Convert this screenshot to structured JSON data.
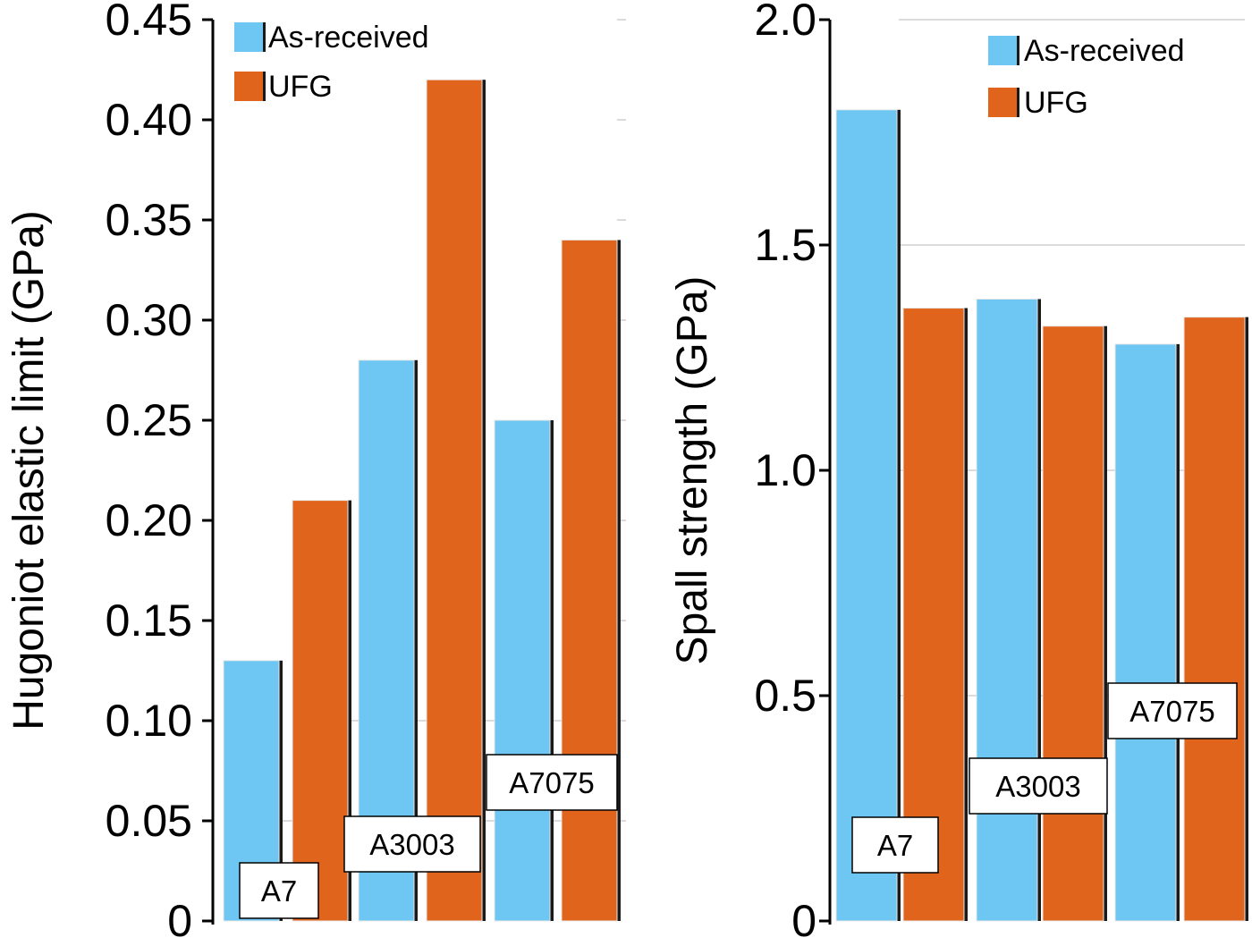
{
  "chart_data": [
    {
      "type": "bar",
      "categories": [
        "A7",
        "A3003",
        "A7075"
      ],
      "series": [
        {
          "name": "As-received",
          "values": [
            0.13,
            0.28,
            0.25
          ]
        },
        {
          "name": "UFG",
          "values": [
            0.21,
            0.42,
            0.34
          ]
        }
      ],
      "ylabel": "Hugoniot elastic limit (GPa)",
      "xlabel": "",
      "ylim": [
        0,
        0.45
      ],
      "yticks": [
        "0",
        "0.05",
        "0.10",
        "0.15",
        "0.20",
        "0.25",
        "0.30",
        "0.35",
        "0.40",
        "0.45"
      ],
      "colors": {
        "As-received": "#6ec6f2",
        "UFG": "#e0641c"
      },
      "grid": "horizontal, partial",
      "legend": "top-left"
    },
    {
      "type": "bar",
      "categories": [
        "A7",
        "A3003",
        "A7075"
      ],
      "series": [
        {
          "name": "As-received",
          "values": [
            1.8,
            1.38,
            1.28
          ]
        },
        {
          "name": "UFG",
          "values": [
            1.36,
            1.32,
            1.34
          ]
        }
      ],
      "ylabel": "Spall strength (GPa)",
      "xlabel": "",
      "ylim": [
        0,
        2.0
      ],
      "yticks": [
        "0",
        "0.5",
        "1.0",
        "1.5",
        "2.0"
      ],
      "colors": {
        "As-received": "#6ec6f2",
        "UFG": "#e0641c"
      },
      "grid": "horizontal",
      "legend": "top-right"
    }
  ]
}
